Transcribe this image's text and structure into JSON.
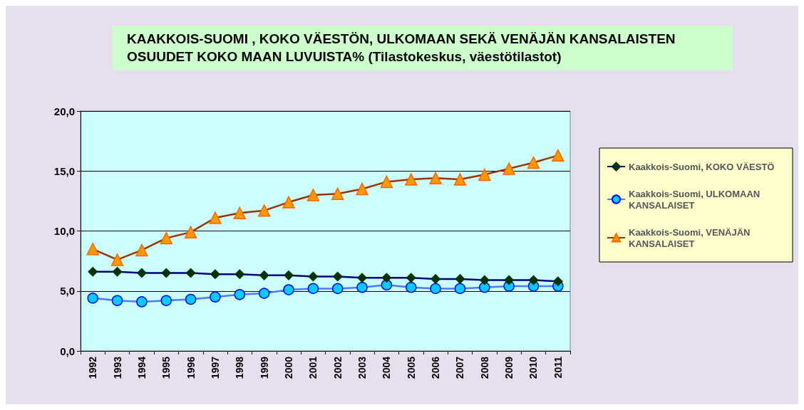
{
  "chart_data": {
    "type": "line",
    "title": "KAAKKOIS-SUOMI , KOKO VÄESTÖN, ULKOMAAN SEKÄ VENÄJÄN KANSALAISTEN OSUUDET KOKO MAAN LUVUISTA% (Tilastokeskus, väestötilastot)",
    "categories": [
      "1992",
      "1993",
      "1994",
      "1995",
      "1996",
      "1997",
      "1998",
      "1999",
      "2000",
      "2001",
      "2002",
      "2003",
      "2004",
      "2005",
      "2006",
      "2007",
      "2008",
      "2009",
      "2010",
      "2011"
    ],
    "series": [
      {
        "name": "Kaakkois-Suomi, KOKO VÄESTÖ",
        "color": "#003300",
        "marker": "diamond",
        "values": [
          6.6,
          6.6,
          6.5,
          6.5,
          6.5,
          6.4,
          6.4,
          6.3,
          6.3,
          6.2,
          6.2,
          6.1,
          6.1,
          6.1,
          6.0,
          6.0,
          5.9,
          5.9,
          5.9,
          5.8
        ]
      },
      {
        "name": "Kaakkois-Suomi, ULKOMAAN KANSALAISET",
        "color": "#00ccff",
        "marker": "circle",
        "values": [
          4.4,
          4.2,
          4.1,
          4.2,
          4.3,
          4.5,
          4.7,
          4.8,
          5.1,
          5.2,
          5.2,
          5.3,
          5.5,
          5.3,
          5.2,
          5.2,
          5.3,
          5.4,
          5.4,
          5.4
        ]
      },
      {
        "name": "Kaakkois-Suomi, VENÄJÄN KANSALAISET",
        "color": "#ff9900",
        "marker": "triangle",
        "values": [
          8.5,
          7.6,
          8.4,
          9.4,
          9.9,
          11.1,
          11.5,
          11.7,
          12.4,
          13.0,
          13.1,
          13.5,
          14.1,
          14.3,
          14.4,
          14.3,
          14.7,
          15.2,
          15.7,
          16.3
        ]
      }
    ],
    "ylim": [
      0,
      20
    ],
    "yticks": [
      {
        "value": 0,
        "label": "0,0"
      },
      {
        "value": 5,
        "label": "5,0"
      },
      {
        "value": 10,
        "label": "10,0"
      },
      {
        "value": 15,
        "label": "15,0"
      },
      {
        "value": 20,
        "label": "20,0"
      }
    ],
    "grid": "y",
    "legend": "right"
  }
}
